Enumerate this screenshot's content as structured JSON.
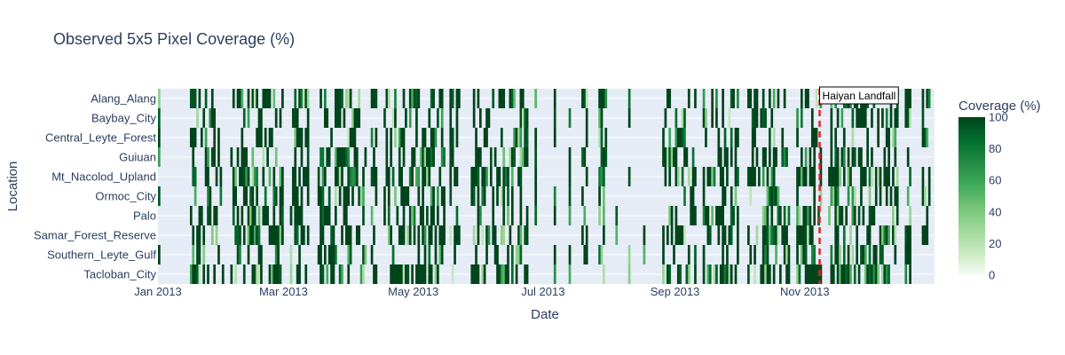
{
  "chart_data": {
    "type": "heatmap",
    "title": "Observed 5x5 Pixel Coverage (%)",
    "xlabel": "Date",
    "ylabel": "Location",
    "x_range": [
      "2013-01-01",
      "2013-12-31"
    ],
    "x_ticks": [
      {
        "date": "2013-01-01",
        "label": "Jan 2013"
      },
      {
        "date": "2013-03-01",
        "label": "Mar 2013"
      },
      {
        "date": "2013-05-01",
        "label": "May 2013"
      },
      {
        "date": "2013-07-01",
        "label": "Jul 2013"
      },
      {
        "date": "2013-09-01",
        "label": "Sep 2013"
      },
      {
        "date": "2013-11-01",
        "label": "Nov 2013"
      }
    ],
    "locations": [
      "Alang_Alang",
      "Baybay_City",
      "Central_Leyte_Forest",
      "Guiuan",
      "Mt_Nacolod_Upland",
      "Ormoc_City",
      "Palo",
      "Samar_Forest_Reserve",
      "Southern_Leyte_Gulf",
      "Tacloban_City"
    ],
    "colorbar": {
      "title": "Coverage (%)",
      "range": [
        0,
        100
      ],
      "ticks": [
        0,
        20,
        40,
        60,
        80,
        100
      ],
      "colorscale": [
        "#f7fcf5",
        "#c7e9c0",
        "#a1d99b",
        "#74c476",
        "#41ab5d",
        "#238b45",
        "#006d2c",
        "#00441b"
      ]
    },
    "annotation": {
      "date": "2013-11-08",
      "text": "Haiyan Landfall",
      "line_color": "#d62728"
    },
    "active_date_ranges": [
      [
        "2013-01-01",
        "2013-01-01"
      ],
      [
        "2013-01-16",
        "2013-01-31"
      ],
      [
        "2013-02-04",
        "2013-02-28"
      ],
      [
        "2013-03-04",
        "2013-03-12"
      ],
      [
        "2013-03-17",
        "2013-04-08"
      ],
      [
        "2013-04-11",
        "2013-04-13"
      ],
      [
        "2013-04-17",
        "2013-05-15"
      ],
      [
        "2013-05-18",
        "2013-05-22"
      ],
      [
        "2013-05-28",
        "2013-06-23"
      ],
      [
        "2013-06-27",
        "2013-06-27"
      ],
      [
        "2013-07-06",
        "2013-07-06"
      ],
      [
        "2013-07-13",
        "2013-07-13"
      ],
      [
        "2013-07-19",
        "2013-07-21"
      ],
      [
        "2013-07-27",
        "2013-07-30"
      ],
      [
        "2013-08-04",
        "2013-08-04"
      ],
      [
        "2013-08-10",
        "2013-08-10"
      ],
      [
        "2013-08-17",
        "2013-08-17"
      ],
      [
        "2013-08-26",
        "2013-09-10"
      ],
      [
        "2013-09-14",
        "2013-09-30"
      ],
      [
        "2013-10-05",
        "2013-10-24"
      ],
      [
        "2013-10-28",
        "2013-11-08"
      ],
      [
        "2013-11-12",
        "2013-12-14"
      ],
      [
        "2013-12-18",
        "2013-12-20"
      ],
      [
        "2013-12-26",
        "2013-12-29"
      ]
    ],
    "density": {
      "Alang_Alang": 0.55,
      "Baybay_City": 0.4,
      "Central_Leyte_Forest": 0.4,
      "Guiuan": 0.45,
      "Mt_Nacolod_Upland": 0.6,
      "Ormoc_City": 0.45,
      "Palo": 0.45,
      "Samar_Forest_Reserve": 0.55,
      "Southern_Leyte_Gulf": 0.4,
      "Tacloban_City": 0.55
    },
    "grid": true,
    "legend": "colorbar-right"
  }
}
